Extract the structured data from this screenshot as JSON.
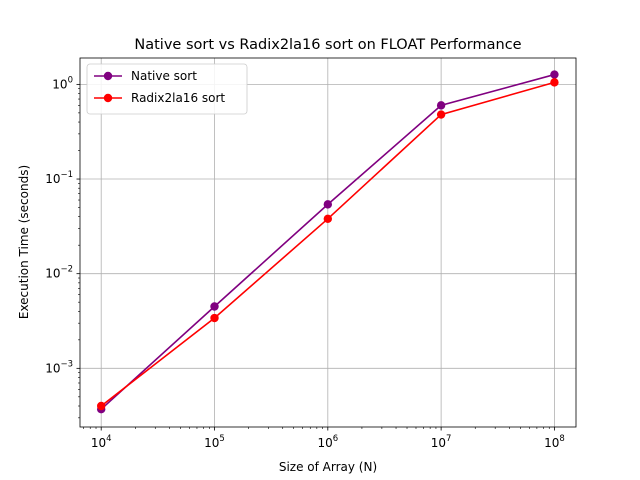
{
  "chart_data": {
    "type": "line",
    "title": "Native sort vs Radix2la16 sort on FLOAT Performance",
    "xlabel": "Size of Array (N)",
    "ylabel": "Execution Time (seconds)",
    "xscale": "log",
    "yscale": "log",
    "x": [
      10000,
      100000,
      1000000,
      10000000,
      100000000
    ],
    "xlim": [
      6500,
      155000000
    ],
    "ylim": [
      0.00024,
      1.9
    ],
    "x_ticks": [
      {
        "value": 10000,
        "base": "10",
        "exp": "4"
      },
      {
        "value": 100000,
        "base": "10",
        "exp": "5"
      },
      {
        "value": 1000000,
        "base": "10",
        "exp": "6"
      },
      {
        "value": 10000000,
        "base": "10",
        "exp": "7"
      },
      {
        "value": 100000000,
        "base": "10",
        "exp": "8"
      }
    ],
    "y_ticks": [
      {
        "value": 0.001,
        "base": "10",
        "exp": "−3"
      },
      {
        "value": 0.01,
        "base": "10",
        "exp": "−2"
      },
      {
        "value": 0.1,
        "base": "10",
        "exp": "−1"
      },
      {
        "value": 1,
        "base": "10",
        "exp": "0"
      }
    ],
    "grid": true,
    "legend_position": "top-left",
    "series": [
      {
        "name": "Native sort",
        "color": "#800080",
        "values": [
          0.00037,
          0.0045,
          0.054,
          0.6,
          1.27
        ]
      },
      {
        "name": "Radix2la16 sort",
        "color": "#ff0000",
        "values": [
          0.0004,
          0.0034,
          0.038,
          0.48,
          1.05
        ]
      }
    ]
  }
}
